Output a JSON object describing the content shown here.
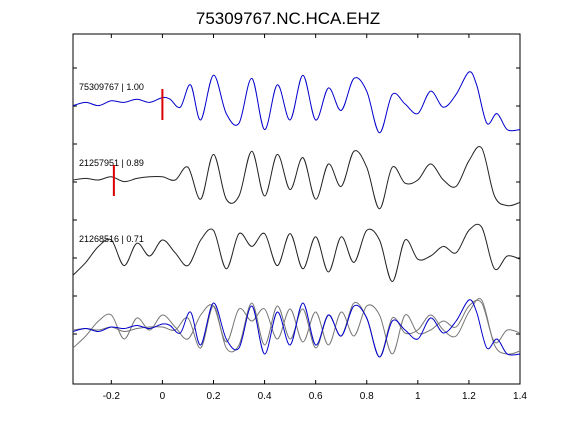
{
  "chart_data": {
    "type": "line",
    "title": "75309767.NC.HCA.EHZ",
    "xlabel": "",
    "ylabel": "",
    "xlim": [
      -0.35,
      1.4
    ],
    "xticks": [
      -0.2,
      0,
      0.2,
      0.4,
      0.6,
      0.8,
      1,
      1.2,
      1.4
    ],
    "xtick_labels": [
      "-0.2",
      "0",
      "0.2",
      "0.4",
      "0.6",
      "0.8",
      "1",
      "1.2",
      "1.4"
    ],
    "y_ticks_unlabeled": 8,
    "grid": false,
    "colors": {
      "master": "#0000cc",
      "other": "#222222",
      "overlay_other": "#777777",
      "pick": "#dd0000"
    },
    "series": [
      {
        "label": "75309767 | 1.00",
        "color": "#0000cc",
        "pick_time": 0.0,
        "x": [
          -0.35,
          -0.3,
          -0.25,
          -0.2,
          -0.15,
          -0.1,
          -0.05,
          0.0,
          0.03,
          0.07,
          0.11,
          0.15,
          0.2,
          0.25,
          0.3,
          0.35,
          0.4,
          0.45,
          0.5,
          0.55,
          0.6,
          0.65,
          0.7,
          0.75,
          0.8,
          0.85,
          0.9,
          0.95,
          1.0,
          1.05,
          1.1,
          1.15,
          1.2,
          1.23,
          1.27,
          1.31,
          1.35,
          1.4
        ],
        "y": [
          -0.05,
          0.05,
          -0.05,
          0.1,
          0.05,
          0.15,
          0.05,
          0.2,
          0.15,
          -0.1,
          0.6,
          -0.5,
          0.9,
          -0.3,
          -0.6,
          0.8,
          -0.8,
          0.6,
          -0.5,
          0.9,
          -0.5,
          0.5,
          -0.2,
          0.8,
          0.4,
          -0.9,
          0.3,
          0.0,
          -0.3,
          0.4,
          -0.1,
          0.3,
          1.0,
          0.6,
          -0.6,
          -0.3,
          -0.8,
          -0.8
        ]
      },
      {
        "label": "21257951 | 0.89",
        "color": "#222222",
        "pick_time": -0.19,
        "x": [
          -0.35,
          -0.3,
          -0.25,
          -0.2,
          -0.15,
          -0.1,
          -0.05,
          0.0,
          0.05,
          0.1,
          0.15,
          0.2,
          0.25,
          0.3,
          0.35,
          0.4,
          0.45,
          0.5,
          0.55,
          0.6,
          0.65,
          0.7,
          0.75,
          0.8,
          0.85,
          0.9,
          0.95,
          1.0,
          1.05,
          1.1,
          1.15,
          1.2,
          1.25,
          1.3,
          1.35,
          1.4
        ],
        "y": [
          0.0,
          0.05,
          0.0,
          0.1,
          -0.05,
          0.05,
          0.1,
          0.1,
          0.0,
          0.4,
          -0.6,
          0.8,
          -0.6,
          -0.5,
          0.9,
          -0.5,
          0.8,
          -0.3,
          0.7,
          -0.6,
          0.5,
          -0.2,
          0.9,
          0.4,
          -0.9,
          0.4,
          -0.1,
          0.0,
          0.5,
          0.0,
          -0.2,
          0.6,
          1.0,
          -0.5,
          -0.8,
          -0.7
        ]
      },
      {
        "label": "21268516 | 0.71",
        "color": "#222222",
        "pick_time": null,
        "x": [
          -0.35,
          -0.3,
          -0.25,
          -0.2,
          -0.15,
          -0.1,
          -0.05,
          0.0,
          0.05,
          0.1,
          0.15,
          0.2,
          0.25,
          0.3,
          0.35,
          0.4,
          0.45,
          0.5,
          0.55,
          0.6,
          0.65,
          0.7,
          0.75,
          0.8,
          0.85,
          0.9,
          0.95,
          1.0,
          1.05,
          1.1,
          1.15,
          1.2,
          1.25,
          1.3,
          1.35,
          1.4
        ],
        "y": [
          -0.6,
          -0.2,
          0.3,
          0.5,
          -0.3,
          0.4,
          0.0,
          0.5,
          0.1,
          -0.3,
          0.5,
          0.8,
          -0.4,
          0.7,
          0.3,
          0.7,
          -0.3,
          0.7,
          -0.4,
          0.6,
          -0.5,
          0.6,
          -0.2,
          0.8,
          0.5,
          -0.8,
          0.5,
          -0.1,
          0.0,
          0.3,
          0.1,
          0.8,
          0.9,
          -0.4,
          0.0,
          -0.1
        ]
      }
    ],
    "overlay": {
      "description_label": "",
      "uses_series": [
        0,
        1,
        2
      ]
    }
  }
}
